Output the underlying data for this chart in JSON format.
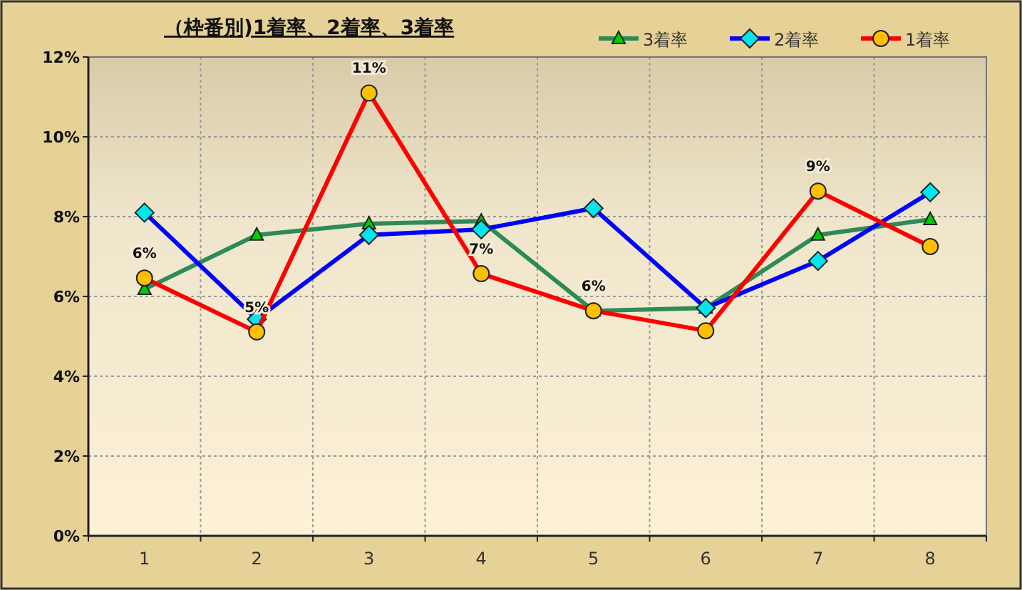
{
  "chart_data": {
    "type": "line",
    "title": "（枠番別)1着率、2着率、3着率",
    "categories": [
      "1",
      "2",
      "3",
      "4",
      "5",
      "6",
      "7",
      "8"
    ],
    "ylim": [
      0,
      12
    ],
    "yticks": [
      {
        "value": 0,
        "label": "0%"
      },
      {
        "value": 2,
        "label": "2%"
      },
      {
        "value": 4,
        "label": "4%"
      },
      {
        "value": 6,
        "label": "6%"
      },
      {
        "value": 8,
        "label": "8%"
      },
      {
        "value": 10,
        "label": "10%"
      },
      {
        "value": 12,
        "label": "12%"
      }
    ],
    "grid": true,
    "legend": "top right",
    "line_style": "solid",
    "series": [
      {
        "name": "3着率",
        "color": "#2e8b57",
        "marker": "triangle",
        "values": [
          6.18,
          7.54,
          7.82,
          7.89,
          5.64,
          5.71,
          7.54,
          7.93
        ]
      },
      {
        "name": "2着率",
        "color": "#0000ff",
        "marker": "diamond",
        "values": [
          8.1,
          5.43,
          7.54,
          7.68,
          8.21,
          5.71,
          6.89,
          8.61
        ]
      },
      {
        "name": "1着率",
        "color": "#ff0000",
        "marker": "circle",
        "values": [
          6.46,
          5.11,
          11.1,
          6.57,
          5.64,
          5.14,
          8.64,
          7.25
        ],
        "value_labels": [
          "6%",
          "5%",
          "11%",
          "7%",
          "6%",
          null,
          "9%",
          null
        ]
      }
    ]
  }
}
